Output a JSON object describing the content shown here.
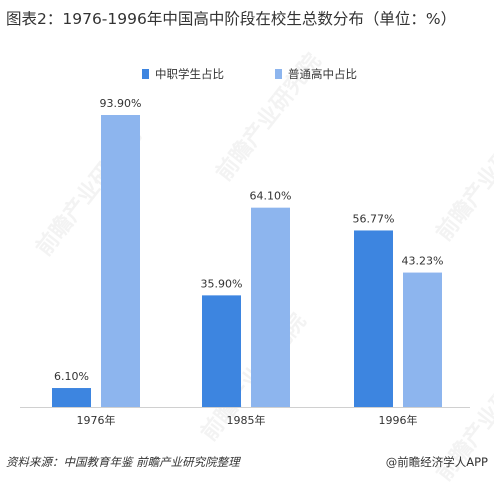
{
  "title": "图表2：1976-1996年中国高中阶段在校生总数分布（单位：%）",
  "legend": {
    "series1": "中职学生占比",
    "series2": "普通高中占比"
  },
  "chart_data": {
    "type": "bar",
    "title": "图表2：1976-1996年中国高中阶段在校生总数分布（单位：%）",
    "categories": [
      "1976年",
      "1985年",
      "1996年"
    ],
    "series": [
      {
        "name": "中职学生占比",
        "values": [
          6.1,
          35.9,
          56.77
        ],
        "color": "#3d85e0"
      },
      {
        "name": "普通高中占比",
        "values": [
          93.9,
          64.1,
          43.23
        ],
        "color": "#8db5ee"
      }
    ],
    "ylim": [
      0,
      100
    ],
    "grid": false,
    "legend_position": "top"
  },
  "footer": {
    "source": "资料来源：中国教育年鉴 前瞻产业研究院整理",
    "brand": "@前瞻经济学人APP"
  },
  "watermark": "前瞻产业研究院"
}
